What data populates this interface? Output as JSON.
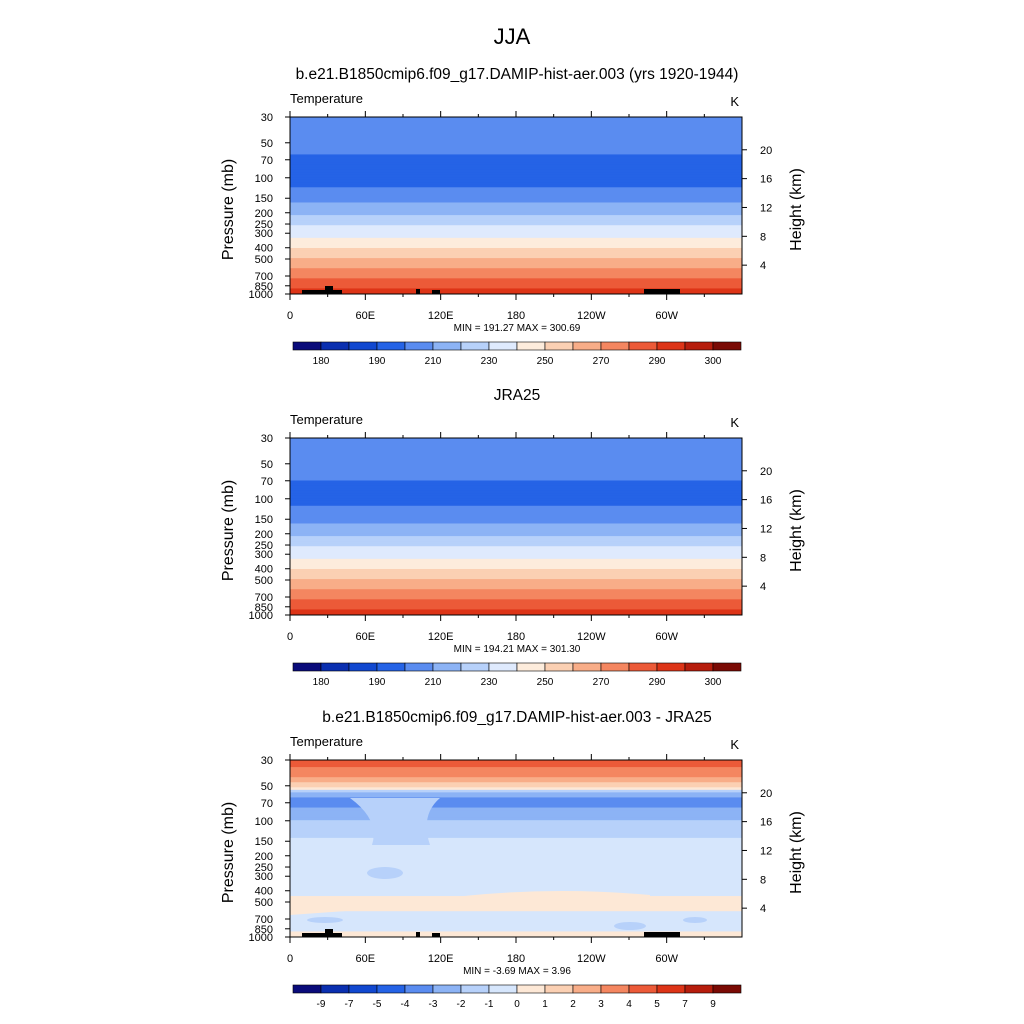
{
  "page": {
    "title": "JJA"
  },
  "colors": {
    "temp_scale": [
      "#0a0b7a",
      "#0a2fb0",
      "#1148d0",
      "#2563e6",
      "#5a8cf0",
      "#8cb3f5",
      "#b7d1fa",
      "#dfeafd",
      "#fdecdc",
      "#fbd0b3",
      "#f8ad88",
      "#f48660",
      "#ec5a38",
      "#dd3417",
      "#b61d0c",
      "#7a0a04"
    ],
    "diff_scale": [
      "#0a0b7a",
      "#0a2fb0",
      "#1148d0",
      "#2563e6",
      "#5a8cf0",
      "#8cb3f5",
      "#b7d1fa",
      "#d6e6fc",
      "#fde8d6",
      "#fbd0b3",
      "#f8ad88",
      "#f48660",
      "#ec5a38",
      "#dd3417",
      "#b61d0c",
      "#7a0a04"
    ],
    "topography": "#000000"
  },
  "chart_data": [
    {
      "type": "heatmap",
      "title": "b.e21.B1850cmip6.f09_g17.DAMIP-hist-aer.003 (yrs 1920-1944)",
      "left_label": "Temperature",
      "right_label": "K",
      "ylabel": "Pressure (mb)",
      "y2label": "Height (km)",
      "x_ticks": [
        "0",
        "60E",
        "120E",
        "180",
        "120W",
        "60W"
      ],
      "y_ticks": [
        "30",
        "50",
        "70",
        "100",
        "150",
        "200",
        "250",
        "300",
        "400",
        "500",
        "700",
        "850",
        "1000"
      ],
      "y2_ticks": [
        "20",
        "16",
        "12",
        "8",
        "4"
      ],
      "stats": "MIN = 191.27  MAX = 300.69",
      "colorbar_labels": [
        "180",
        "190",
        "210",
        "230",
        "250",
        "270",
        "290",
        "300"
      ],
      "profile": [
        [
          30,
          210
        ],
        [
          50,
          205
        ],
        [
          70,
          198
        ],
        [
          100,
          196
        ],
        [
          150,
          205
        ],
        [
          200,
          218
        ],
        [
          250,
          228
        ],
        [
          300,
          236
        ],
        [
          400,
          250
        ],
        [
          500,
          261
        ],
        [
          700,
          276
        ],
        [
          850,
          286
        ],
        [
          1000,
          295
        ]
      ]
    },
    {
      "type": "heatmap",
      "title": "JRA25",
      "left_label": "Temperature",
      "right_label": "K",
      "ylabel": "Pressure (mb)",
      "y2label": "Height (km)",
      "x_ticks": [
        "0",
        "60E",
        "120E",
        "180",
        "120W",
        "60W"
      ],
      "y_ticks": [
        "30",
        "50",
        "70",
        "100",
        "150",
        "200",
        "250",
        "300",
        "400",
        "500",
        "700",
        "850",
        "1000"
      ],
      "y2_ticks": [
        "20",
        "16",
        "12",
        "8",
        "4"
      ],
      "stats": "MIN = 194.21  MAX = 301.30",
      "colorbar_labels": [
        "180",
        "190",
        "210",
        "230",
        "250",
        "270",
        "290",
        "300"
      ],
      "profile": [
        [
          30,
          206
        ],
        [
          50,
          204
        ],
        [
          70,
          200
        ],
        [
          100,
          197
        ],
        [
          150,
          206
        ],
        [
          200,
          218
        ],
        [
          250,
          228
        ],
        [
          300,
          236
        ],
        [
          400,
          250
        ],
        [
          500,
          261
        ],
        [
          700,
          276
        ],
        [
          850,
          286
        ],
        [
          1000,
          294
        ]
      ]
    },
    {
      "type": "heatmap",
      "title": "b.e21.B1850cmip6.f09_g17.DAMIP-hist-aer.003 - JRA25",
      "left_label": "Temperature",
      "right_label": "K",
      "ylabel": "Pressure (mb)",
      "y2label": "Height (km)",
      "x_ticks": [
        "0",
        "60E",
        "120E",
        "180",
        "120W",
        "60W"
      ],
      "y_ticks": [
        "30",
        "50",
        "70",
        "100",
        "150",
        "200",
        "250",
        "300",
        "400",
        "500",
        "700",
        "850",
        "1000"
      ],
      "y2_ticks": [
        "20",
        "16",
        "12",
        "8",
        "4"
      ],
      "stats": "MIN = -3.69  MAX =  3.96",
      "colorbar_labels": [
        "-9",
        "-7",
        "-5",
        "-4",
        "-3",
        "-2",
        "-1",
        "0",
        "1",
        "2",
        "3",
        "4",
        "5",
        "7",
        "9"
      ],
      "profile": [
        [
          30,
          4.5
        ],
        [
          40,
          3.5
        ],
        [
          50,
          1.5
        ],
        [
          60,
          -2.5
        ],
        [
          70,
          -3.5
        ],
        [
          85,
          -2.5
        ],
        [
          100,
          -2
        ],
        [
          130,
          -1.5
        ],
        [
          150,
          -0.5
        ],
        [
          200,
          -0.5
        ],
        [
          300,
          -0.5
        ],
        [
          400,
          -0.5
        ],
        [
          500,
          0.5
        ],
        [
          700,
          -0.5
        ],
        [
          850,
          -0.5
        ],
        [
          1000,
          0.5
        ]
      ]
    }
  ]
}
